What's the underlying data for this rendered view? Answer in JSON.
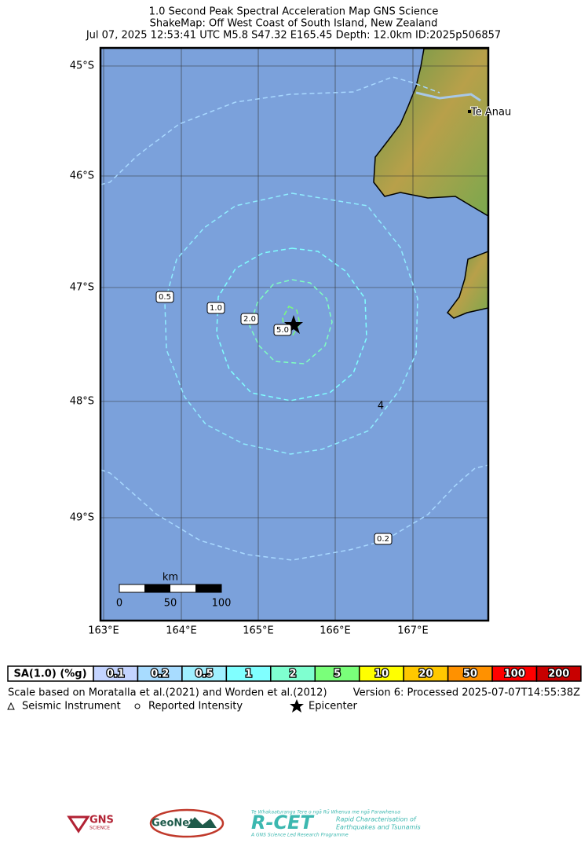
{
  "header": {
    "title": "1.0 Second Peak Spectral Acceleration Map GNS Science",
    "subtitle": "ShakeMap: Off West Coast of South Island, New Zealand",
    "info": "Jul 07, 2025 12:53:41 UTC M5.8 S47.32 E165.45 Depth: 12.0km ID:2025p506857"
  },
  "map": {
    "lat_labels": [
      "45°S",
      "46°S",
      "47°S",
      "48°S",
      "49°S"
    ],
    "lon_labels": [
      "163°E",
      "164°E",
      "165°E",
      "166°E",
      "167°E"
    ],
    "place": "Te Anau",
    "contour_labels": [
      "0.5",
      "1.0",
      "2.0",
      "5.0",
      "0.2"
    ],
    "scale_bar": {
      "unit": "km",
      "ticks": [
        "0",
        "50",
        "100"
      ]
    }
  },
  "legend": {
    "title": "SA(1.0) (%g)",
    "bins": [
      "0.1",
      "0.2",
      "0.5",
      "1",
      "2",
      "5",
      "10",
      "20",
      "50",
      "100",
      "200"
    ],
    "note": "Scale based on Moratalla et al.(2021) and Worden et al.(2012)",
    "version": "Version 6: Processed 2025-07-07T14:55:38Z",
    "symbols": [
      "Seismic Instrument",
      "Reported Intensity",
      "Epicenter"
    ]
  },
  "logos": {
    "gns": "GNS",
    "gns_sub": "SCIENCE",
    "geonet": "GeoNet",
    "rcet": "R-CET",
    "rcet_top": "Te Whakaaturanga Tere o ngā Rū Whenua me ngā Parawhenua",
    "rcet_line1": "Rapid Characterisation of",
    "rcet_line2": "Earthquakes and Tsunamis",
    "rcet_bottom": "A GNS Science Led Research Programme"
  }
}
